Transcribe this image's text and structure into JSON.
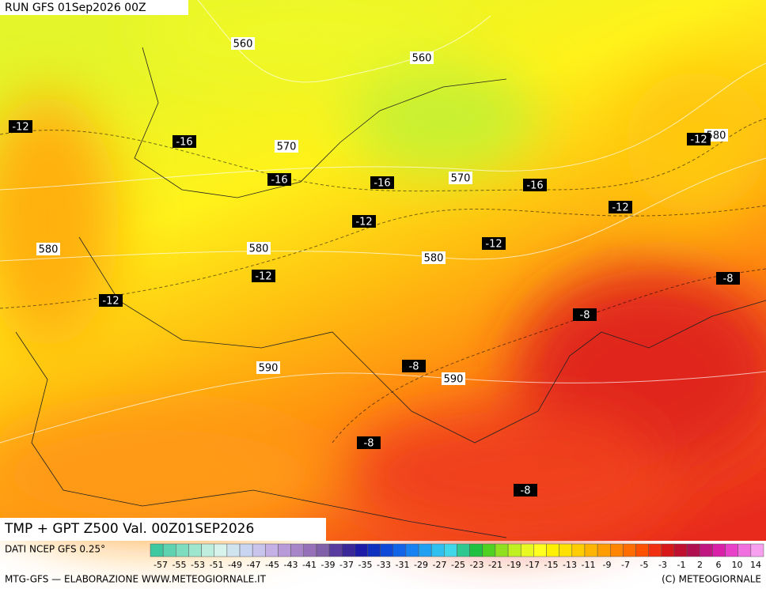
{
  "header": {
    "run": "RUN GFS 01Sep2026 00Z"
  },
  "map": {
    "title": "TMP + GPT Z500 Val. 00Z01SEP2026",
    "height_labels": [
      "560",
      "560",
      "570",
      "570",
      "580",
      "580",
      "580",
      "580",
      "590",
      "590"
    ],
    "temp_labels": [
      "-12",
      "-16",
      "-16",
      "-16",
      "-16",
      "-12",
      "-12",
      "-12",
      "-12",
      "-12",
      "-12",
      "-8",
      "-8",
      "-8",
      "-8",
      "-8"
    ]
  },
  "legend": {
    "source": "DATI NCEP GFS 0.25°",
    "colors": [
      "#3fc9a0",
      "#5fd3b0",
      "#7fddbf",
      "#9fe6cf",
      "#bfeedf",
      "#d8f2ec",
      "#d0e4f0",
      "#c8d4f0",
      "#c8c4ec",
      "#c4b0e4",
      "#b89ad8",
      "#a884c8",
      "#9670b8",
      "#8060a8",
      "#5a3ca0",
      "#3a2898",
      "#1c1ca8",
      "#1030c0",
      "#1048d8",
      "#1464e8",
      "#1880f0",
      "#20a0f0",
      "#30c0f0",
      "#40d8e8",
      "#30c890",
      "#20c040",
      "#50d020",
      "#90e020",
      "#c0f020",
      "#e8f820",
      "#ffff20",
      "#fff000",
      "#ffe000",
      "#ffcc00",
      "#ffb400",
      "#ff9c00",
      "#ff8400",
      "#ff6c00",
      "#ff5000",
      "#f03010",
      "#d81818",
      "#c01030",
      "#b01050",
      "#c01880",
      "#d820a8",
      "#e840c8",
      "#f070e0",
      "#f8a0f0"
    ],
    "labels": [
      "-57",
      "-55",
      "-53",
      "-51",
      "-49",
      "-47",
      "-45",
      "-43",
      "-41",
      "-39",
      "-37",
      "-35",
      "-33",
      "-31",
      "-29",
      "-27",
      "-25",
      "-23",
      "-21",
      "-19",
      "-17",
      "-15",
      "-13",
      "-11",
      "-9",
      "-7",
      "-5",
      "-3",
      "-1",
      "2",
      "6",
      "10",
      "14"
    ]
  },
  "footer": {
    "left": "MTG-GFS — ELABORAZIONE WWW.METEOGIORNALE.IT",
    "right": "(C) METEOGIORNALE"
  }
}
